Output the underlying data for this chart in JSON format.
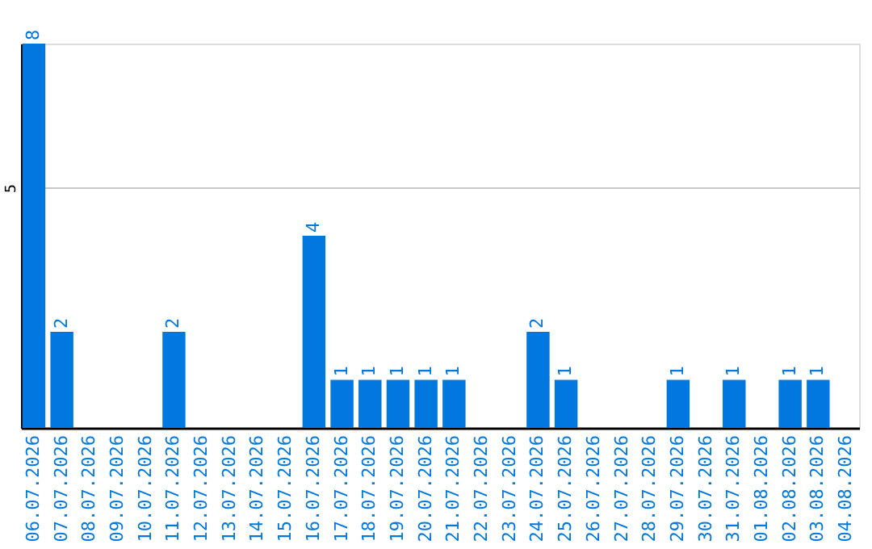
{
  "chart_data": {
    "type": "bar",
    "categories": [
      "06.07.2026",
      "07.07.2026",
      "08.07.2026",
      "09.07.2026",
      "10.07.2026",
      "11.07.2026",
      "12.07.2026",
      "13.07.2026",
      "14.07.2026",
      "15.07.2026",
      "16.07.2026",
      "17.07.2026",
      "18.07.2026",
      "19.07.2026",
      "20.07.2026",
      "21.07.2026",
      "22.07.2026",
      "23.07.2026",
      "24.07.2026",
      "25.07.2026",
      "26.07.2026",
      "27.07.2026",
      "28.07.2026",
      "29.07.2026",
      "30.07.2026",
      "31.07.2026",
      "01.08.2026",
      "02.08.2026",
      "03.08.2026",
      "04.08.2026"
    ],
    "values": [
      8,
      2,
      0,
      0,
      0,
      2,
      0,
      0,
      0,
      0,
      4,
      1,
      1,
      1,
      1,
      1,
      0,
      0,
      2,
      1,
      0,
      0,
      0,
      1,
      0,
      1,
      0,
      1,
      1,
      0
    ],
    "value_labels": [
      "8",
      "2",
      null,
      null,
      null,
      "2",
      null,
      null,
      null,
      null,
      "4",
      "1",
      "1",
      "1",
      "1",
      "1",
      null,
      null,
      "2",
      "1",
      null,
      null,
      null,
      "1",
      null,
      "1",
      null,
      "1",
      "1",
      null
    ],
    "color": "#0078e0",
    "ylim": [
      0,
      8
    ],
    "yticks": [
      5
    ],
    "grid": "y"
  }
}
